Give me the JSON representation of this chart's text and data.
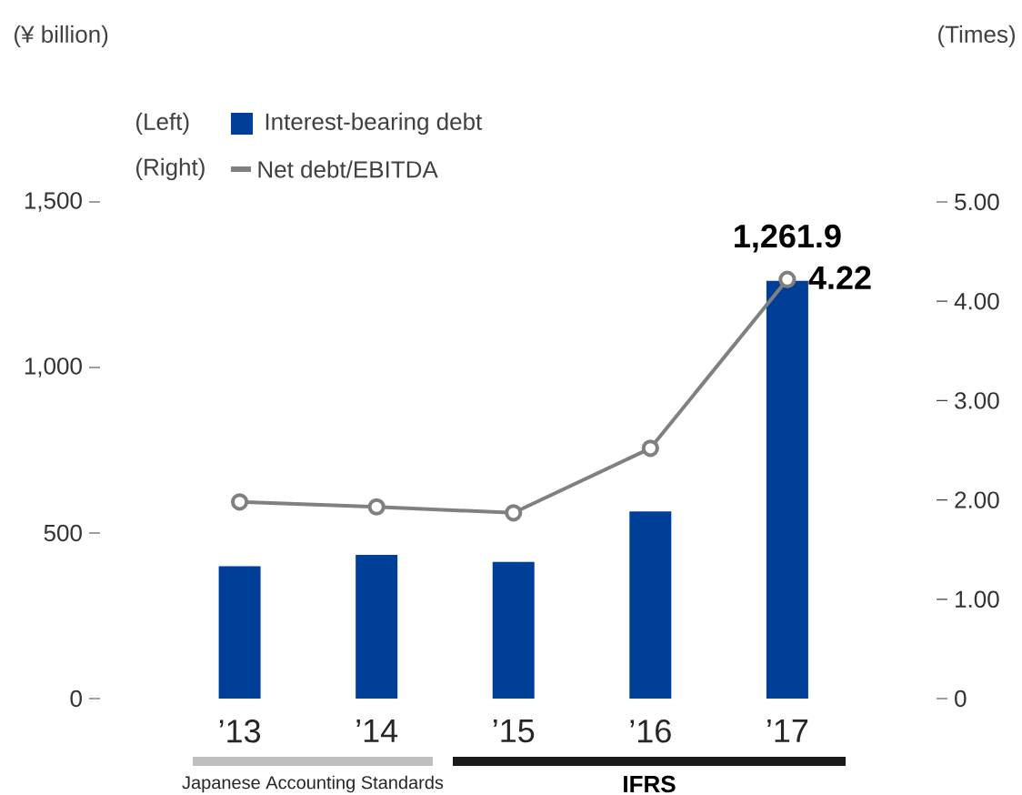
{
  "chart_data": {
    "type": "bar",
    "categories": [
      "’13",
      "’14",
      "’15",
      "’16",
      "’17"
    ],
    "series": [
      {
        "name": "Interest-bearing debt",
        "color": "#003f98",
        "values": [
          400,
          434,
          413,
          565,
          1261.9
        ],
        "value_labels": [
          null,
          null,
          null,
          null,
          "1,261.9"
        ]
      },
      {
        "name": "Net debt/EBITDA",
        "type": "line",
        "axis": "y2",
        "color": "#808080",
        "values": [
          1.98,
          1.93,
          1.87,
          2.52,
          4.22
        ],
        "value_labels": [
          null,
          null,
          null,
          null,
          "4.22"
        ]
      }
    ],
    "ylim": [
      0,
      1500
    ],
    "yticks": [
      0,
      500,
      {
        "value": 1000,
        "label": "1,000"
      },
      {
        "value": 1500,
        "label": "1,500"
      }
    ],
    "y2lim": [
      0,
      5
    ],
    "y2ticks": [
      0,
      {
        "value": 1,
        "label": "1.00"
      },
      {
        "value": 2,
        "label": "2.00"
      },
      {
        "value": 3,
        "label": "3.00"
      },
      {
        "value": 4,
        "label": "4.00"
      },
      {
        "value": 5,
        "label": "5.00"
      }
    ],
    "marker": "circle",
    "legend": "top left",
    "annotations": [
      "(Left)",
      "(Right)",
      "Japanese Accounting Standards",
      "IFRS",
      "(¥ billion)",
      "(Times)"
    ]
  }
}
